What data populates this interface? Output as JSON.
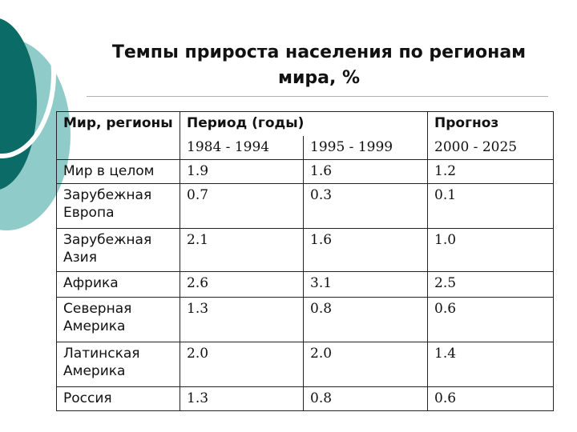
{
  "title_line1": "Темпы прироста населения по регионам",
  "title_line2": "мира, %",
  "header": {
    "region": "Мир, регионы",
    "period": "Период (годы)",
    "forecast": "Прогноз",
    "col1": "1984 - 1994",
    "col2": "1995 - 1999",
    "col3": "2000 - 2025"
  },
  "rows": [
    {
      "region": "Мир в целом",
      "v1": "1.9",
      "v2": "1.6",
      "v3": "1.2"
    },
    {
      "region": "Зарубежная Европа",
      "v1": "0.7",
      "v2": "0.3",
      "v3": "0.1"
    },
    {
      "region": "Зарубежная Азия",
      "v1": "2.1",
      "v2": "1.6",
      "v3": "1.0"
    },
    {
      "region": "Африка",
      "v1": "2.6",
      "v2": "3.1",
      "v3": "2.5"
    },
    {
      "region": "Северная Америка",
      "v1": "1.3",
      "v2": "0.8",
      "v3": "0.6"
    },
    {
      "region": "Латинская Америка",
      "v1": "2.0",
      "v2": "2.0",
      "v3": "1.4"
    },
    {
      "region": "Россия",
      "v1": "1.3",
      "v2": "0.8",
      "v3": "0.6"
    }
  ],
  "colors": {
    "accent_dark": "#0b6b66",
    "accent_light": "#8fcbc9"
  }
}
